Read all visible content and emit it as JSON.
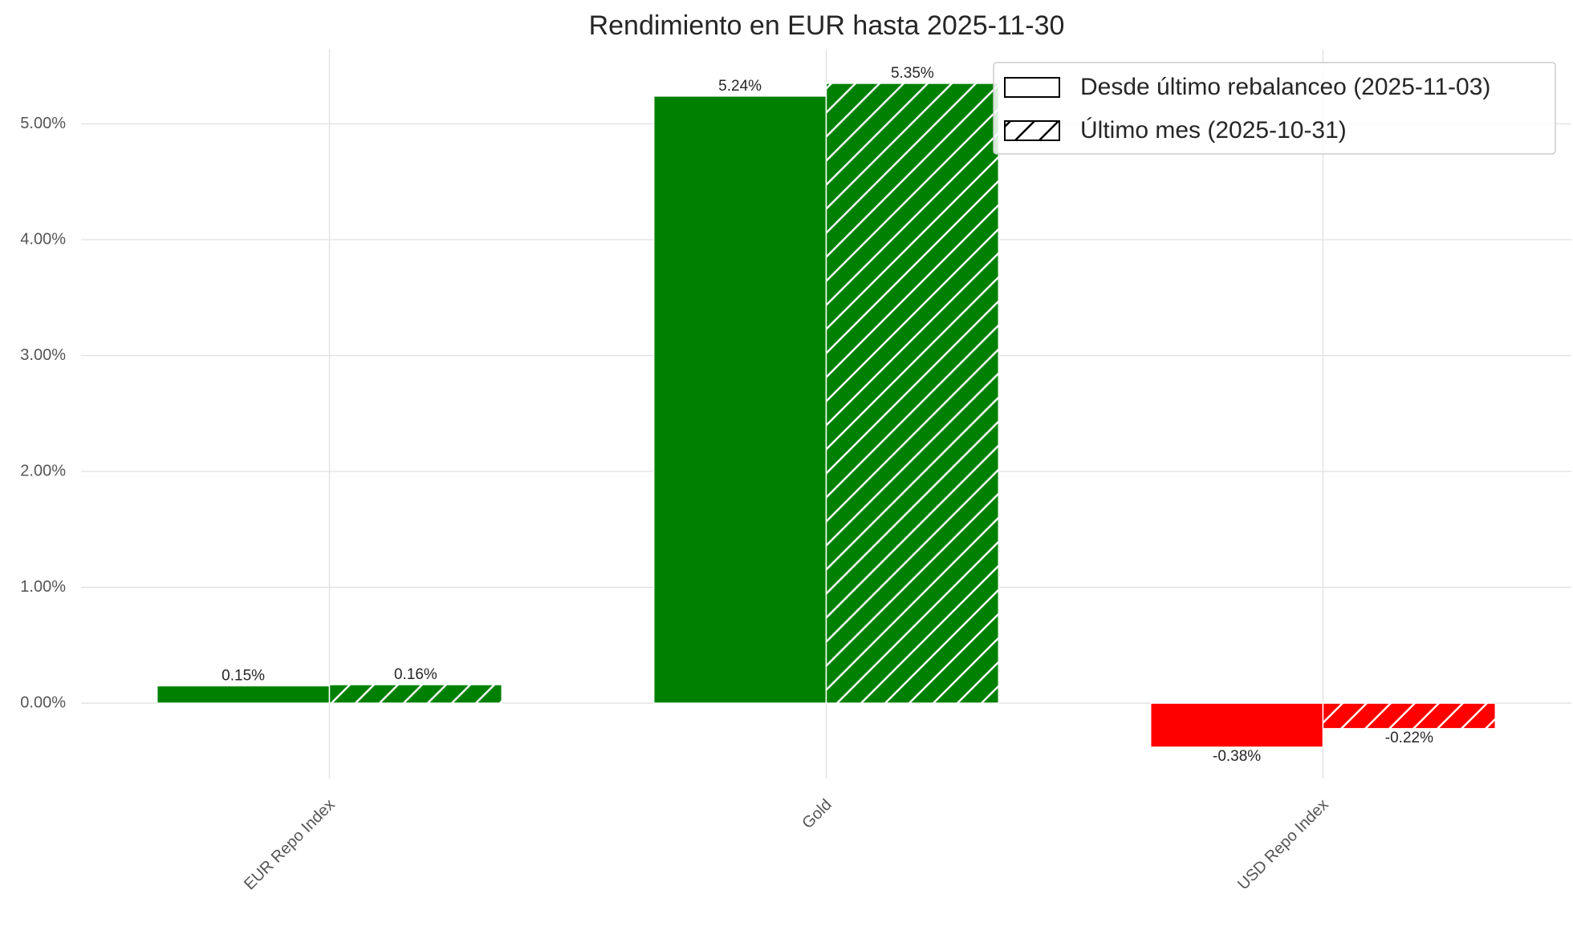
{
  "chart_data": {
    "type": "bar",
    "title": "Rendimiento en EUR hasta 2025-11-30",
    "categories": [
      "EUR Repo Index",
      "Gold",
      "USD Repo Index"
    ],
    "series": [
      {
        "name": "Desde último rebalanceo (2025-11-03)",
        "colors": [
          "#008000",
          "#008000",
          "#ff0000"
        ],
        "values": [
          0.15,
          5.24,
          -0.38
        ],
        "value_labels": [
          "0.15%",
          "5.24%",
          "-0.38%"
        ]
      },
      {
        "name": "Último mes (2025-10-31)",
        "colors": [
          "#008000",
          "#008000",
          "#ff0000"
        ],
        "hatch": "/",
        "values": [
          0.16,
          5.35,
          -0.22
        ],
        "value_labels": [
          "0.16%",
          "5.35%",
          "-0.22%"
        ]
      }
    ],
    "ylim": [
      -0.65,
      5.64
    ],
    "yticks": [
      {
        "value": 0,
        "label": "0.00%"
      },
      {
        "value": 1,
        "label": "1.00%"
      },
      {
        "value": 2,
        "label": "2.00%"
      },
      {
        "value": 3,
        "label": "3.00%"
      },
      {
        "value": 4,
        "label": "4.00%"
      },
      {
        "value": 5,
        "label": "5.00%"
      }
    ],
    "grid": true,
    "legend": "upper right"
  }
}
